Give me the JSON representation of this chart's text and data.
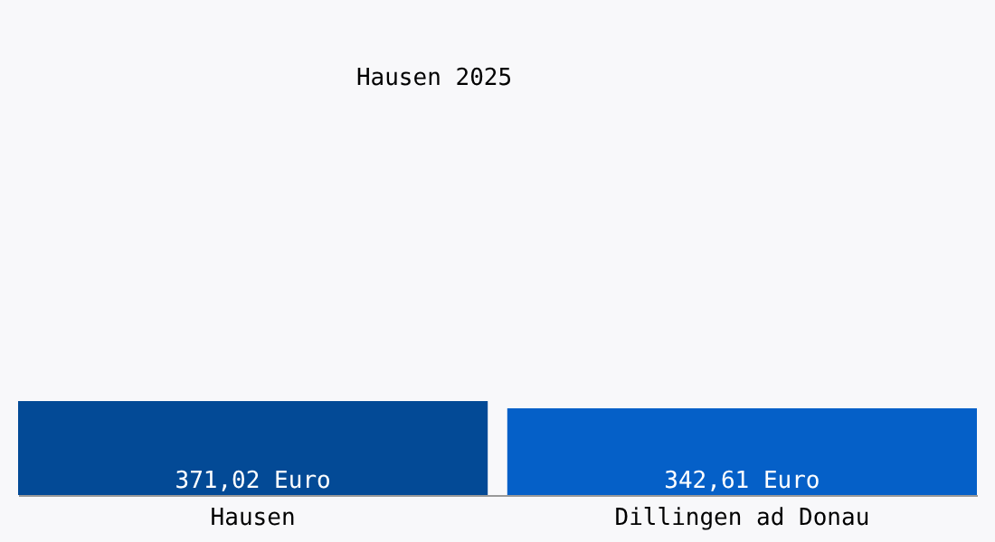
{
  "chart_data": {
    "type": "bar",
    "title": "Hausen 2025",
    "categories": [
      "Hausen",
      "Dillingen ad Donau"
    ],
    "values": [
      371.02,
      342.61
    ],
    "colors": [
      "#034a96",
      "#0560c8"
    ],
    "value_labels": [
      "371,02 Euro",
      "342,61 Euro"
    ]
  }
}
